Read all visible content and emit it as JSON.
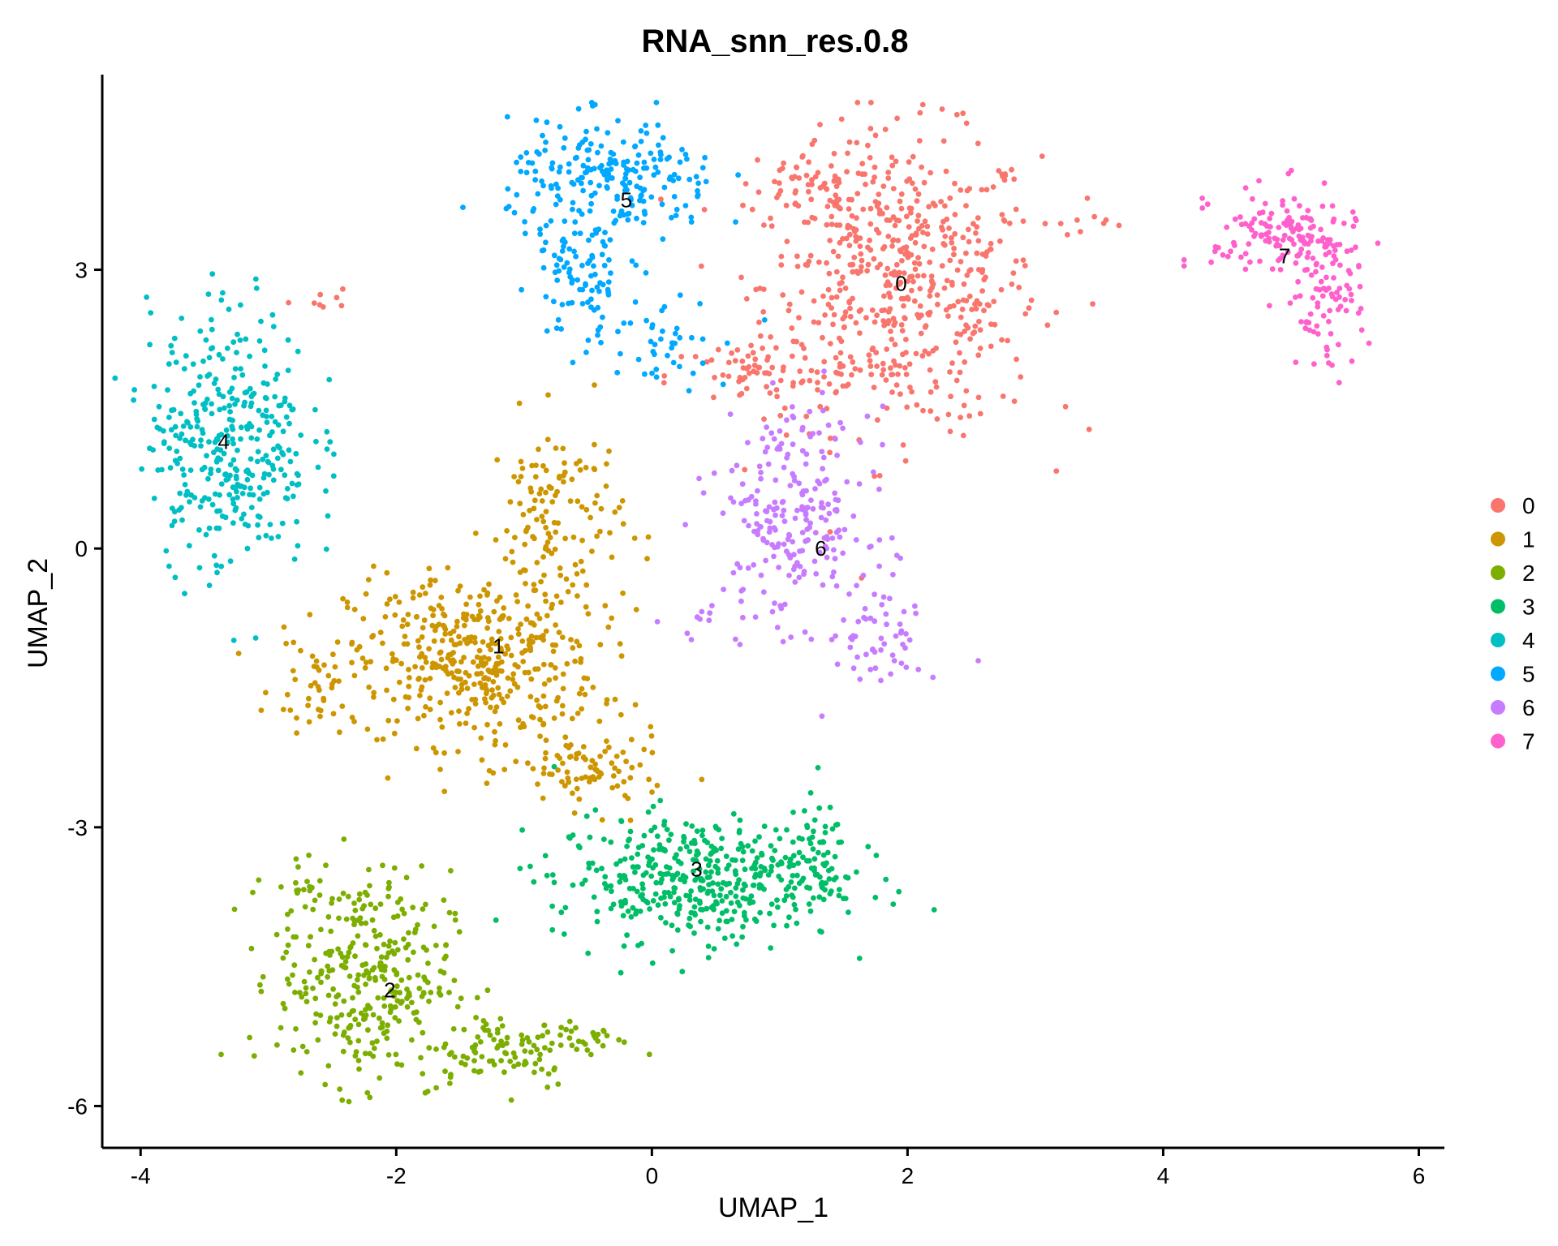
{
  "chart_data": {
    "type": "scatter",
    "title": "RNA_snn_res.0.8",
    "xlabel": "UMAP_1",
    "ylabel": "UMAP_2",
    "xlim": [
      -4.3,
      6.2
    ],
    "ylim": [
      -6.45,
      5.1
    ],
    "xticks": [
      -4,
      -2,
      0,
      2,
      4,
      6
    ],
    "xtick_labels": [
      "-4",
      "-2",
      "0",
      "2",
      "4",
      "6"
    ],
    "yticks": [
      -6,
      -3,
      0,
      3
    ],
    "ytick_labels": [
      "-6",
      "-3",
      "0",
      "3"
    ],
    "grid": false,
    "legend_position": "right",
    "series": [
      {
        "name": "0",
        "color": "#F8766D",
        "label_pos": [
          1.95,
          2.85
        ],
        "clusters": [
          [
            1.95,
            2.85,
            0.72,
            1.05,
            560
          ],
          [
            0.8,
            1.85,
            0.45,
            0.25,
            60
          ],
          [
            1.3,
            3.9,
            0.4,
            0.35,
            60
          ],
          [
            3.3,
            3.5,
            0.25,
            0.2,
            8
          ],
          [
            -2.6,
            2.7,
            0.15,
            0.12,
            8
          ]
        ]
      },
      {
        "name": "1",
        "color": "#CD9600",
        "label_pos": [
          -1.2,
          -1.05
        ],
        "clusters": [
          [
            -1.4,
            -1.2,
            0.65,
            0.6,
            420
          ],
          [
            -0.75,
            0.3,
            0.35,
            0.75,
            130
          ],
          [
            -0.5,
            -2.4,
            0.4,
            0.28,
            90
          ],
          [
            -2.6,
            -1.5,
            0.25,
            0.35,
            40
          ]
        ]
      },
      {
        "name": "2",
        "color": "#7CAE00",
        "label_pos": [
          -2.05,
          -4.75
        ],
        "clusters": [
          [
            -2.25,
            -4.6,
            0.45,
            0.75,
            320
          ],
          [
            -1.2,
            -5.4,
            0.45,
            0.28,
            90
          ],
          [
            -0.55,
            -5.25,
            0.25,
            0.12,
            30
          ],
          [
            -2.7,
            -3.75,
            0.18,
            0.35,
            20
          ]
        ]
      },
      {
        "name": "3",
        "color": "#00BE67",
        "label_pos": [
          0.35,
          -3.45
        ],
        "clusters": [
          [
            0.35,
            -3.55,
            0.75,
            0.45,
            430
          ],
          [
            1.25,
            -3.3,
            0.18,
            0.35,
            50
          ]
        ]
      },
      {
        "name": "4",
        "color": "#00BFC4",
        "label_pos": [
          -3.35,
          1.15
        ],
        "clusters": [
          [
            -3.3,
            1.2,
            0.42,
            0.95,
            360
          ]
        ]
      },
      {
        "name": "5",
        "color": "#00A9FF",
        "label_pos": [
          -0.2,
          3.75
        ],
        "clusters": [
          [
            -0.3,
            3.95,
            0.55,
            0.42,
            220
          ],
          [
            -0.55,
            2.9,
            0.25,
            0.5,
            90
          ],
          [
            0.1,
            2.3,
            0.35,
            0.35,
            40
          ]
        ]
      },
      {
        "name": "6",
        "color": "#C77CFF",
        "label_pos": [
          1.32,
          0.0
        ],
        "clusters": [
          [
            1.1,
            0.35,
            0.4,
            0.75,
            230
          ],
          [
            1.75,
            -0.9,
            0.25,
            0.45,
            60
          ],
          [
            0.6,
            -0.9,
            0.3,
            0.2,
            10
          ]
        ]
      },
      {
        "name": "7",
        "color": "#FF61CC",
        "label_pos": [
          4.95,
          3.15
        ],
        "clusters": [
          [
            4.95,
            3.35,
            0.38,
            0.35,
            150
          ],
          [
            5.3,
            2.6,
            0.18,
            0.45,
            70
          ]
        ]
      }
    ]
  }
}
